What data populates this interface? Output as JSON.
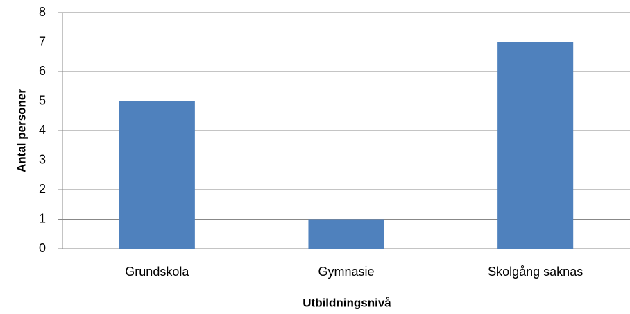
{
  "chart_data": {
    "type": "bar",
    "x_label": "Utbildningsnivå",
    "y_label": "Antal personer",
    "categories": [
      "Grundskola",
      "Gymnasie",
      "Skolgång saknas"
    ],
    "values": [
      5,
      1,
      7
    ],
    "color": "#4f81bd",
    "ylim": [
      0,
      8
    ],
    "yticks": [
      0,
      1,
      2,
      3,
      4,
      5,
      6,
      7,
      8
    ],
    "grid": true
  }
}
